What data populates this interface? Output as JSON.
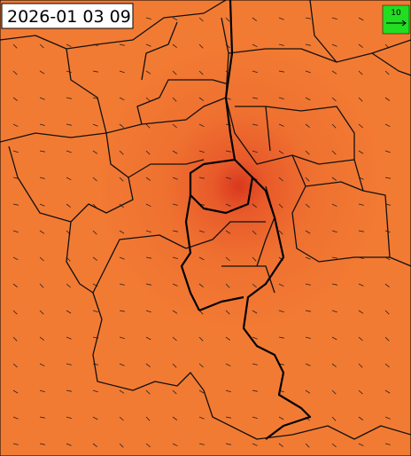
{
  "timestamp": "2026-01 03 09",
  "legend": {
    "label": "10"
  }
}
